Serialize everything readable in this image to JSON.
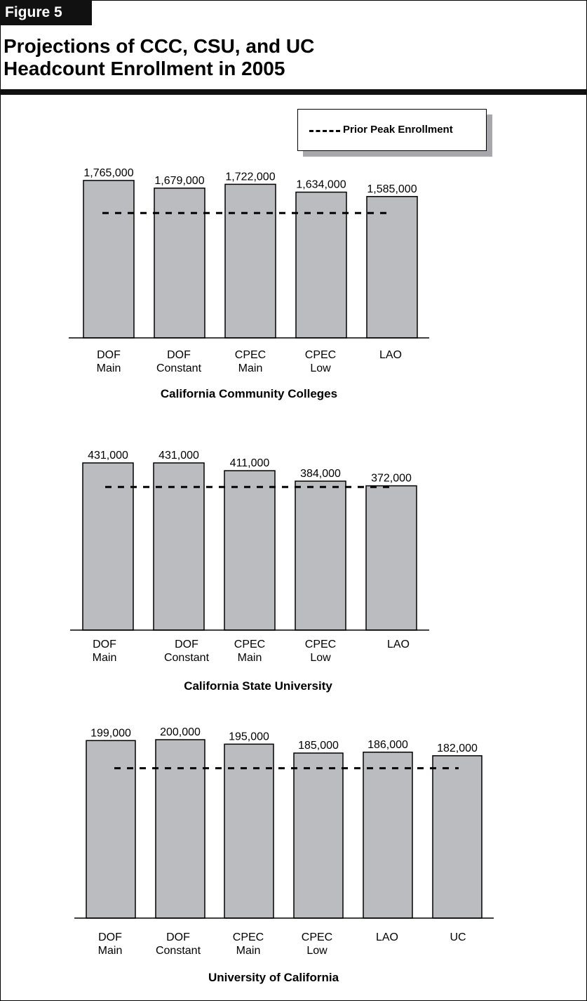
{
  "figure_label": "Figure 5",
  "title_lines": [
    "Projections of CCC, CSU, and UC",
    "Headcount Enrollment in 2005"
  ],
  "legend": {
    "dashed_label": "Prior Peak Enrollment"
  },
  "colors": {
    "bar_fill": "#bbbcc0",
    "bar_stroke": "#000000",
    "header_bg": "#111111",
    "legend_shadow": "#a8a8ac"
  },
  "chart_data": [
    {
      "type": "bar",
      "title": "California Community Colleges",
      "categories": [
        [
          "DOF",
          "Main"
        ],
        [
          "DOF",
          "Constant"
        ],
        [
          "CPEC",
          "Main"
        ],
        [
          "CPEC",
          "Low"
        ],
        [
          "LAO"
        ]
      ],
      "values": [
        1765000,
        1679000,
        1722000,
        1634000,
        1585000
      ],
      "value_labels": [
        "1,765,000",
        "1,679,000",
        "1,722,000",
        "1,634,000",
        "1,585,000"
      ],
      "reference_line": {
        "label": "Prior Peak Enrollment",
        "value": 1400000,
        "style": "dashed"
      },
      "ylim": [
        0,
        1780000
      ],
      "xlabel": "",
      "ylabel": "",
      "grid": false
    },
    {
      "type": "bar",
      "title": "California State University",
      "categories": [
        [
          "DOF",
          "Main"
        ],
        [
          "DOF",
          "Constant"
        ],
        [
          "CPEC",
          "Main"
        ],
        [
          "CPEC",
          "Low"
        ],
        [
          "LAO"
        ]
      ],
      "values": [
        431000,
        431000,
        411000,
        384000,
        372000
      ],
      "value_labels": [
        "431,000",
        "431,000",
        "411,000",
        "384,000",
        "372,000"
      ],
      "reference_line": {
        "label": "Prior Peak Enrollment",
        "value": 369000,
        "style": "dashed"
      },
      "ylim": [
        0,
        431000
      ],
      "xlabel": "",
      "ylabel": "",
      "grid": false
    },
    {
      "type": "bar",
      "title": "University of California",
      "categories": [
        [
          "DOF",
          "Main"
        ],
        [
          "DOF",
          "Constant"
        ],
        [
          "CPEC",
          "Main"
        ],
        [
          "CPEC",
          "Low"
        ],
        [
          "LAO"
        ],
        [
          "UC"
        ]
      ],
      "values": [
        199000,
        200000,
        195000,
        185000,
        186000,
        182000
      ],
      "value_labels": [
        "199,000",
        "200,000",
        "195,000",
        "185,000",
        "186,000",
        "182,000"
      ],
      "reference_line": {
        "label": "Prior Peak Enrollment",
        "value": 168000,
        "style": "dashed"
      },
      "ylim": [
        0,
        200000
      ],
      "xlabel": "",
      "ylabel": "",
      "grid": false
    }
  ]
}
